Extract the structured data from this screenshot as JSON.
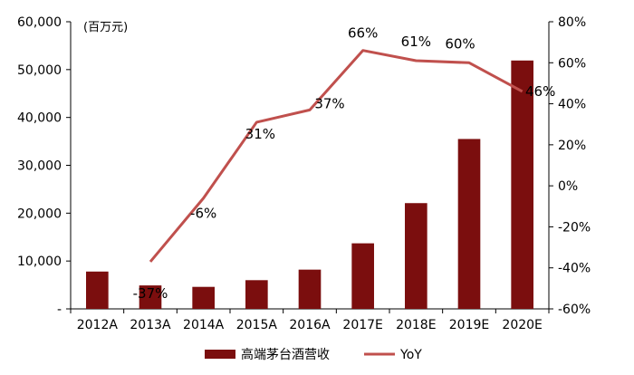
{
  "chart_data": {
    "type": "bar",
    "unit_label": "(百万元)",
    "categories": [
      "2012A",
      "2013A",
      "2014A",
      "2015A",
      "2016A",
      "2017E",
      "2018E",
      "2019E",
      "2020E"
    ],
    "series": [
      {
        "name": "高端茅台酒营收",
        "type": "bar",
        "axis": "left",
        "color": "#7b0e0e",
        "values": [
          7800,
          4900,
          4600,
          6000,
          8200,
          13700,
          22100,
          35500,
          51900
        ]
      },
      {
        "name": "YoY",
        "type": "line",
        "axis": "right",
        "color": "#c0504d",
        "values": [
          null,
          -37,
          -6,
          31,
          37,
          66,
          61,
          60,
          46
        ],
        "labels": [
          "",
          "-37%",
          "-6%",
          "31%",
          "37%",
          "66%",
          "61%",
          "60%",
          "46%"
        ]
      }
    ],
    "left_axis": {
      "ylim": [
        0,
        60000
      ],
      "ticks": [
        0,
        10000,
        20000,
        30000,
        40000,
        50000,
        60000
      ],
      "tick_labels": [
        "-",
        "10,000",
        "20,000",
        "30,000",
        "40,000",
        "50,000",
        "60,000"
      ]
    },
    "right_axis": {
      "ylim": [
        -60,
        80
      ],
      "ticks": [
        -60,
        -40,
        -20,
        0,
        20,
        40,
        60,
        80
      ],
      "tick_labels": [
        "-60%",
        "-40%",
        "-20%",
        "0%",
        "20%",
        "40%",
        "60%",
        "80%"
      ]
    },
    "grid": false,
    "legend": "bottom"
  }
}
